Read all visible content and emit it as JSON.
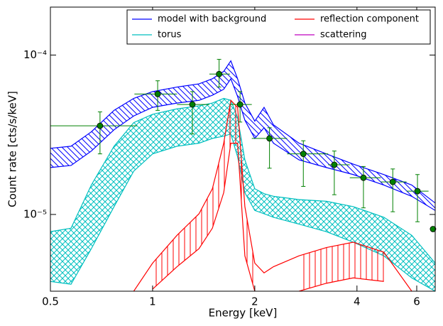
{
  "chart_data": {
    "type": "line",
    "xlabel": "Energy [keV]",
    "ylabel": "Count rate [cts/s/keV]",
    "xscale": "log",
    "yscale": "log",
    "xlim": [
      0.5,
      6.8
    ],
    "ylim": [
      3.3e-06,
      0.0002
    ],
    "xticks": [
      0.5,
      1,
      2,
      4,
      6
    ],
    "yticks": [
      {
        "value": 1e-05,
        "label": "10⁻⁵"
      },
      {
        "value": 0.0001,
        "label": "10⁻⁴"
      }
    ],
    "legend": "upper right",
    "x": [
      0.5,
      0.575,
      0.66,
      0.77,
      0.88,
      1.0,
      1.18,
      1.37,
      1.5,
      1.62,
      1.7,
      1.78,
      1.87,
      2.0,
      2.13,
      2.27,
      2.7,
      3.25,
      3.9,
      4.8,
      5.8,
      6.8
    ],
    "series": [
      {
        "name": "model with background",
        "color": "#0000ff",
        "hatch": "diagonal",
        "upper": [
          2.6e-05,
          2.68e-05,
          3.3e-05,
          4.5e-05,
          5.35e-05,
          5.9e-05,
          6.3e-05,
          6.6e-05,
          7.1e-05,
          7.9e-05,
          9.2e-05,
          7.1e-05,
          5e-05,
          3.85e-05,
          4.7e-05,
          3.65e-05,
          2.8e-05,
          2.4e-05,
          2.07e-05,
          1.78e-05,
          1.53e-05,
          1.18e-05
        ],
        "lower": [
          1.97e-05,
          2.03e-05,
          2.5e-05,
          3.4e-05,
          4.15e-05,
          4.7e-05,
          5e-05,
          5.2e-05,
          5.6e-05,
          6.1e-05,
          7.1e-05,
          5.5e-05,
          3.9e-05,
          3e-05,
          3.5e-05,
          2.8e-05,
          2.2e-05,
          1.97e-05,
          1.78e-05,
          1.53e-05,
          1.3e-05,
          1.06e-05
        ]
      },
      {
        "name": "torus",
        "color": "#00bfbf",
        "hatch": "cross",
        "upper": [
          7.8e-06,
          8.2e-06,
          1.53e-05,
          2.68e-05,
          3.77e-05,
          4.25e-05,
          4.6e-05,
          4.8e-05,
          5e-05,
          5.35e-05,
          5.2e-05,
          4.05e-05,
          2.2e-05,
          1.45e-05,
          1.35e-05,
          1.3e-05,
          1.24e-05,
          1.21e-05,
          1.12e-05,
          9.6e-06,
          7.4e-06,
          4.95e-06
        ],
        "lower": [
          3.8e-06,
          3.65e-06,
          6.1e-06,
          1.12e-05,
          1.87e-05,
          2.4e-05,
          2.68e-05,
          2.8e-05,
          3e-05,
          3.1e-05,
          3.2e-05,
          2.3e-05,
          1.37e-05,
          1.06e-05,
          1.01e-05,
          9.6e-06,
          8.7e-06,
          7.8e-06,
          6.7e-06,
          5.5e-06,
          4e-06,
          3.3e-06
        ]
      },
      {
        "name": "reflection component",
        "color": "#ff0000",
        "hatch": "vertical",
        "upper": [
          null,
          null,
          null,
          null,
          3.3e-06,
          4.95e-06,
          7.4e-06,
          1.01e-05,
          1.45e-05,
          2.8e-05,
          5.2e-05,
          4.7e-05,
          1.12e-05,
          4.95e-06,
          4.3e-06,
          4.7e-06,
          5.5e-06,
          6.2e-06,
          6.7e-06,
          5.8e-06,
          3.3e-06,
          null
        ],
        "lower": [
          null,
          null,
          null,
          null,
          null,
          3.4e-06,
          4.7e-06,
          6.1e-06,
          8.2e-06,
          1.37e-05,
          2.8e-05,
          2.8e-05,
          5.5e-06,
          3.3e-06,
          null,
          null,
          3.3e-06,
          3.7e-06,
          4e-06,
          3.8e-06,
          null,
          null
        ]
      },
      {
        "name": "scattering",
        "color": "#bf00bf"
      }
    ],
    "points": {
      "color": "#008000",
      "x": [
        0.7,
        1.035,
        1.31,
        1.57,
        1.81,
        2.21,
        2.78,
        3.43,
        4.18,
        5.1,
        6.03,
        6.7
      ],
      "values": [
        3.6e-05,
        5.7e-05,
        4.9e-05,
        7.6e-05,
        4.9e-05,
        3e-05,
        2.4e-05,
        2.05e-05,
        1.7e-05,
        1.6e-05,
        1.4e-05,
        8.1e-06
      ],
      "x_low": [
        0.5,
        0.884,
        1.18,
        1.47,
        1.69,
        1.96,
        2.49,
        3.29,
        3.81,
        4.7,
        5.6,
        null
      ],
      "x_high": [
        0.9,
        1.18,
        1.47,
        1.69,
        1.96,
        2.49,
        3.29,
        3.81,
        4.7,
        5.6,
        6.5,
        null
      ],
      "y_low": [
        2.4e-05,
        4.5e-05,
        3.2e-05,
        6.3e-05,
        3.8e-05,
        1.95e-05,
        1.5e-05,
        1.33e-05,
        1.1e-05,
        1.04e-05,
        9e-06,
        null
      ],
      "y_high": [
        4.4e-05,
        6.9e-05,
        5.9e-05,
        9.4e-05,
        5.9e-05,
        3.5e-05,
        2.9e-05,
        2.5e-05,
        2e-05,
        1.93e-05,
        1.78e-05,
        null
      ]
    }
  }
}
